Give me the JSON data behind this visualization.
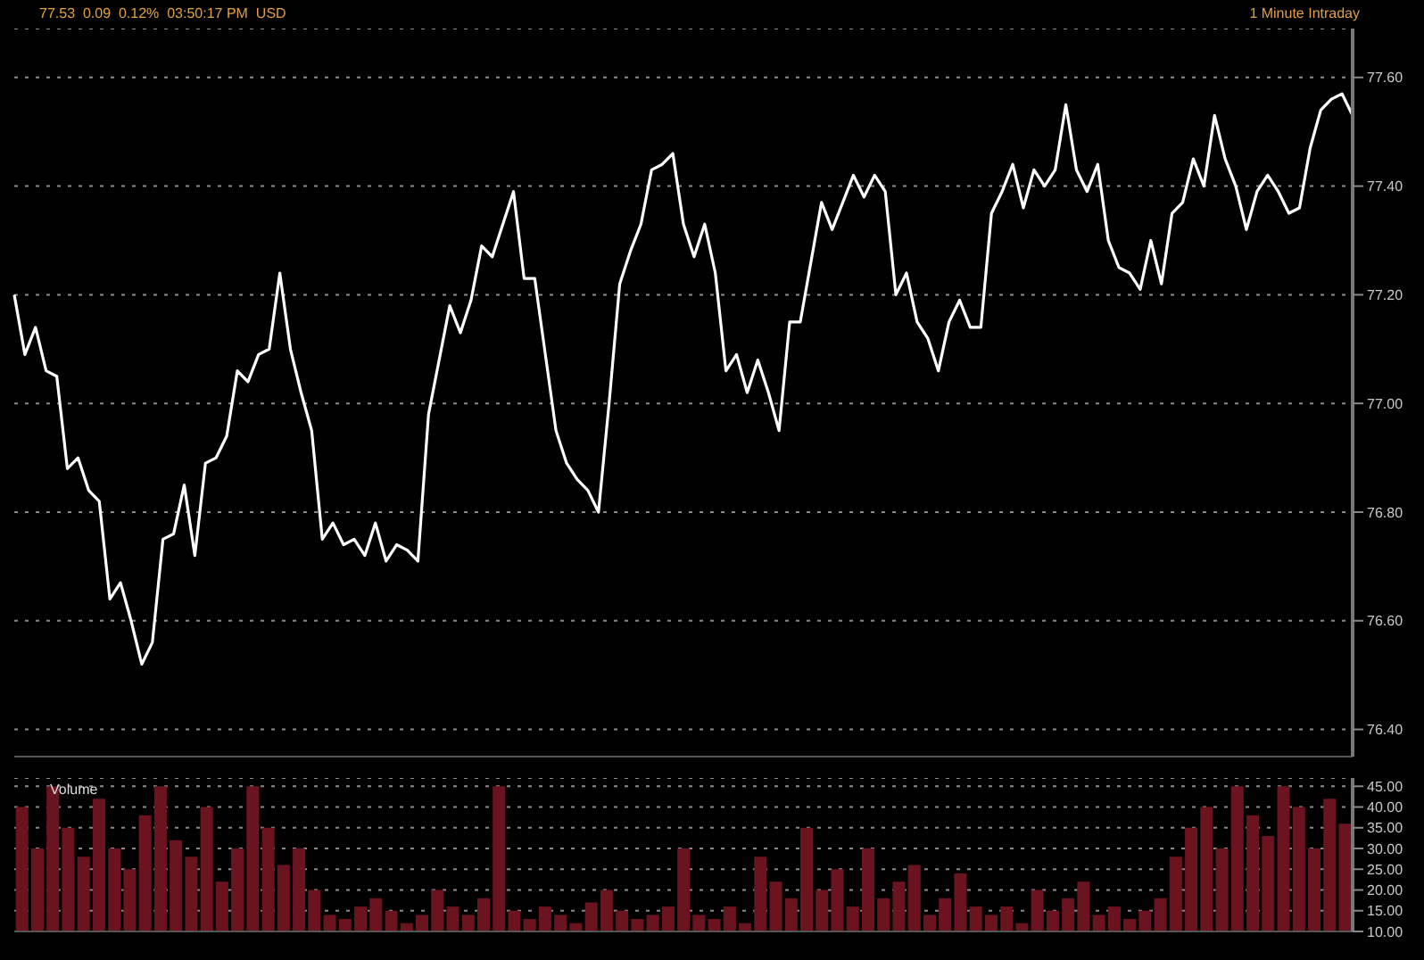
{
  "chart_data": [
    {
      "type": "line",
      "title": "77.53  0.09  0.12%  03:50:17 PM  USD",
      "subtitle": "1 Minute Intraday",
      "categories": [
        null,
        null,
        null,
        null,
        null,
        null,
        null,
        null,
        null,
        null,
        null,
        null,
        null,
        null,
        null,
        null,
        null,
        null,
        null,
        null,
        null,
        null,
        null,
        null,
        null,
        null,
        null,
        null,
        null,
        null,
        null,
        null,
        null,
        null,
        null,
        null,
        null,
        null,
        null,
        null,
        null,
        null,
        null,
        null,
        null,
        null,
        null,
        null,
        null,
        null,
        null,
        null,
        null,
        null,
        null,
        null,
        null,
        null,
        null,
        null,
        null,
        null,
        null,
        null,
        null,
        null,
        null,
        null,
        null,
        null,
        null,
        null,
        null,
        null,
        null,
        null,
        null,
        null,
        null,
        null,
        null,
        null,
        null,
        null,
        null,
        null,
        null,
        null,
        null,
        null,
        null,
        null,
        null,
        null,
        null,
        null,
        null,
        null,
        null,
        null,
        null,
        null,
        null,
        null,
        null,
        null,
        null,
        null,
        null,
        null,
        null,
        null,
        null,
        null,
        null,
        null,
        null,
        null,
        null,
        null,
        null,
        null,
        null,
        null,
        null,
        null,
        null
      ],
      "series": [
        {
          "color": "#ffffff",
          "values": [
            77.2,
            77.09,
            77.14,
            77.06,
            77.05,
            76.88,
            76.9,
            76.84,
            76.82,
            76.64,
            76.67,
            76.6,
            76.52,
            76.56,
            76.75,
            76.76,
            76.85,
            76.72,
            76.89,
            76.9,
            76.94,
            77.06,
            77.04,
            77.09,
            77.1,
            77.24,
            77.1,
            77.02,
            76.95,
            76.75,
            76.78,
            76.74,
            76.75,
            76.72,
            76.78,
            76.71,
            76.74,
            76.73,
            76.71,
            76.98,
            77.08,
            77.18,
            77.13,
            77.19,
            77.29,
            77.27,
            77.33,
            77.39,
            77.23,
            77.23,
            77.09,
            76.95,
            76.89,
            76.86,
            76.84,
            76.8,
            77.0,
            77.22,
            77.28,
            77.33,
            77.43,
            77.44,
            77.46,
            77.33,
            77.27,
            77.33,
            77.24,
            77.06,
            77.09,
            77.02,
            77.08,
            77.02,
            76.95,
            77.15,
            77.15,
            77.26,
            77.37,
            77.32,
            77.37,
            77.42,
            77.38,
            77.42,
            77.39,
            77.2,
            77.24,
            77.15,
            77.12,
            77.06,
            77.15,
            77.19,
            77.14,
            77.14,
            77.35,
            77.39,
            77.44,
            77.36,
            77.43,
            77.4,
            77.43,
            77.55,
            77.43,
            77.39,
            77.44,
            77.3,
            77.25,
            77.24,
            77.21,
            77.3,
            77.22,
            77.35,
            77.37,
            77.45,
            77.4,
            77.53,
            77.45,
            77.4,
            77.32,
            77.39,
            77.42,
            77.39,
            77.35,
            77.36,
            77.47,
            77.54,
            77.56,
            77.57,
            77.53
          ]
        }
      ],
      "ylim": [
        76.35,
        77.69
      ],
      "yticks": [
        {
          "value": 76.4,
          "label": "76.40"
        },
        {
          "value": 76.6,
          "label": "76.60"
        },
        {
          "value": 76.8,
          "label": "76.80"
        },
        {
          "value": 77.0,
          "label": "77.00"
        },
        {
          "value": 77.2,
          "label": "77.20"
        },
        {
          "value": 77.4,
          "label": "77.40"
        },
        {
          "value": 77.6,
          "label": "77.60"
        }
      ],
      "grid": "y",
      "line_style": "solid"
    },
    {
      "type": "bar",
      "title": "Volume",
      "color": "#6b1420",
      "categories": [
        null,
        null,
        null,
        null,
        null,
        null,
        null,
        null,
        null,
        null,
        null,
        null,
        null,
        null,
        null,
        null,
        null,
        null,
        null,
        null,
        null,
        null,
        null,
        null,
        null,
        null,
        null,
        null,
        null,
        null,
        null,
        null,
        null,
        null,
        null,
        null,
        null,
        null,
        null,
        null,
        null,
        null,
        null,
        null,
        null,
        null,
        null,
        null,
        null,
        null,
        null,
        null,
        null,
        null,
        null,
        null,
        null,
        null,
        null,
        null,
        null,
        null,
        null,
        null,
        null,
        null,
        null,
        null,
        null,
        null,
        null,
        null,
        null,
        null,
        null,
        null,
        null,
        null,
        null,
        null,
        null,
        null,
        null,
        null,
        null,
        null,
        null
      ],
      "values": [
        40,
        30,
        45,
        35,
        28,
        42,
        30,
        25,
        38,
        45,
        32,
        28,
        40,
        22,
        30,
        45,
        35,
        26,
        30,
        20,
        14,
        13,
        16,
        18,
        15,
        12,
        14,
        20,
        16,
        14,
        18,
        45,
        15,
        13,
        16,
        14,
        12,
        17,
        20,
        15,
        13,
        14,
        16,
        30,
        14,
        13,
        16,
        12,
        28,
        22,
        18,
        35,
        20,
        25,
        16,
        30,
        18,
        22,
        26,
        14,
        18,
        24,
        16,
        14,
        16,
        12,
        20,
        15,
        18,
        22,
        14,
        16,
        13,
        15,
        18,
        28,
        35,
        40,
        30,
        45,
        38,
        33,
        45,
        40,
        30,
        42,
        36
      ],
      "ylim": [
        10,
        47
      ],
      "yticks": [
        {
          "value": 10,
          "label": "10.00"
        },
        {
          "value": 15,
          "label": "15.00"
        },
        {
          "value": 20,
          "label": "20.00"
        },
        {
          "value": 25,
          "label": "25.00"
        },
        {
          "value": 30,
          "label": "30.00"
        },
        {
          "value": 35,
          "label": "35.00"
        },
        {
          "value": 40,
          "label": "40.00"
        },
        {
          "value": 45,
          "label": "45.00"
        }
      ],
      "grid": "y"
    }
  ]
}
